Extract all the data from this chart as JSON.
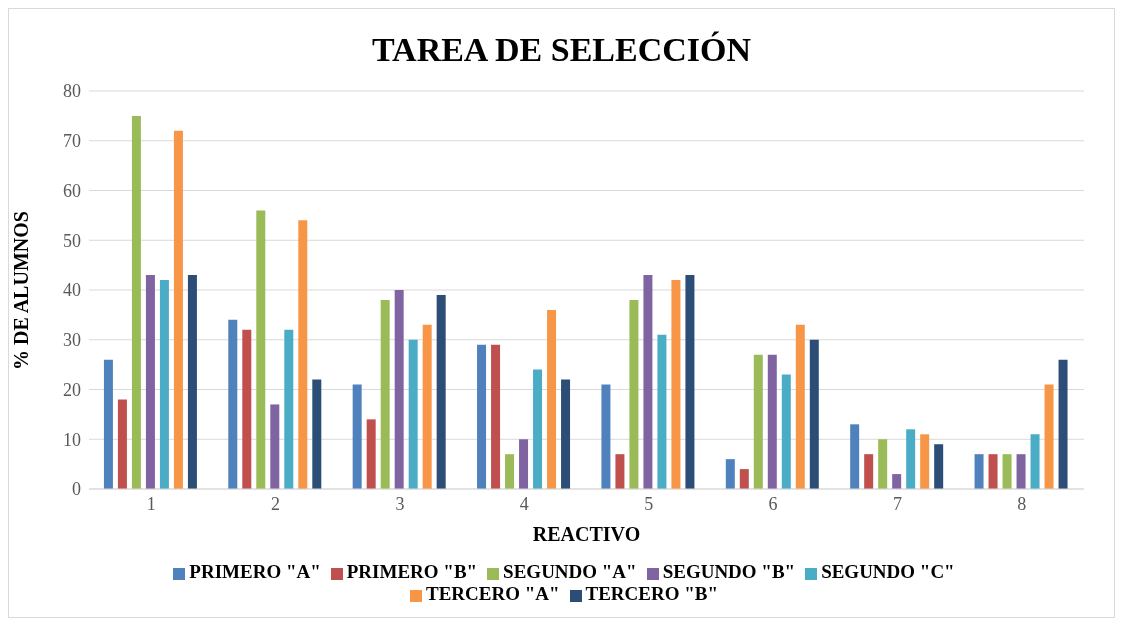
{
  "chart_data": {
    "type": "bar",
    "title": "TAREA DE SELECCIÓN",
    "xlabel": "REACTIVO",
    "ylabel": "% DE ALUMNOS",
    "categories": [
      "1",
      "2",
      "3",
      "4",
      "5",
      "6",
      "7",
      "8"
    ],
    "series": [
      {
        "name": "PRIMERO \"A\"",
        "color": "#4f81bd",
        "values": [
          26,
          34,
          21,
          29,
          21,
          6,
          13,
          7
        ]
      },
      {
        "name": "PRIMERO \"B\"",
        "color": "#c0504d",
        "values": [
          18,
          32,
          14,
          29,
          7,
          4,
          7,
          7
        ]
      },
      {
        "name": "SEGUNDO \"A\"",
        "color": "#9bbb59",
        "values": [
          75,
          56,
          38,
          7,
          38,
          27,
          10,
          7
        ]
      },
      {
        "name": "SEGUNDO \"B\"",
        "color": "#8064a2",
        "values": [
          43,
          17,
          40,
          10,
          43,
          27,
          3,
          7
        ]
      },
      {
        "name": "SEGUNDO \"C\"",
        "color": "#4bacc6",
        "values": [
          42,
          32,
          30,
          24,
          31,
          23,
          12,
          11
        ]
      },
      {
        "name": "TERCERO \"A\"",
        "color": "#f79646",
        "values": [
          72,
          54,
          33,
          36,
          42,
          33,
          11,
          21
        ]
      },
      {
        "name": "TERCERO \"B\"",
        "color": "#2c4d75",
        "values": [
          43,
          22,
          39,
          22,
          43,
          30,
          9,
          26
        ]
      }
    ],
    "ylim": [
      0,
      80
    ],
    "yticks": [
      0,
      10,
      20,
      30,
      40,
      50,
      60,
      70,
      80
    ],
    "grid": "y",
    "legend": "bottom"
  }
}
